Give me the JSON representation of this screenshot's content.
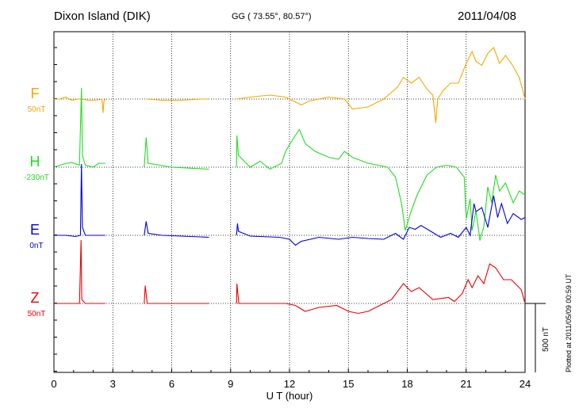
{
  "header": {
    "station": "Dixon Island (DIK)",
    "coords": "GG ( 73.55°,  80.57°)",
    "date": "2011/04/08"
  },
  "footer_note": "Plotted at 2011/05/09 00:59 UT",
  "scale_label": "500 nT",
  "chart_data": {
    "type": "line",
    "xlabel": "U T (hour)",
    "xlim": [
      0,
      24
    ],
    "x_ticks": [
      "0",
      "3",
      "6",
      "9",
      "12",
      "15",
      "18",
      "21",
      "24"
    ],
    "grid": true,
    "scale_bar_nT": 500,
    "series": [
      {
        "name": "F",
        "baseline": "50nT",
        "color": "#f5a800",
        "segments": [
          [
            [
              0,
              0
            ],
            [
              0.3,
              0
            ],
            [
              0.6,
              5
            ],
            [
              0.9,
              -3
            ],
            [
              1.25,
              0
            ],
            [
              1.4,
              0
            ],
            [
              1.7,
              -3
            ],
            [
              2.0,
              -3
            ],
            [
              2.3,
              -2
            ],
            [
              2.45,
              0
            ],
            [
              2.5,
              -35
            ],
            [
              2.55,
              -5
            ],
            [
              2.62,
              0
            ]
          ],
          [
            [
              4.7,
              0
            ],
            [
              5.5,
              -3
            ],
            [
              6.5,
              -3
            ],
            [
              7.5,
              0
            ],
            [
              7.9,
              0
            ]
          ],
          [
            [
              9.3,
              0
            ],
            [
              10,
              5
            ],
            [
              11,
              10
            ],
            [
              11.8,
              5
            ],
            [
              12.2,
              -5
            ],
            [
              12.6,
              -15
            ],
            [
              13,
              -5
            ],
            [
              14,
              5
            ],
            [
              14.8,
              0
            ],
            [
              15.2,
              -25
            ],
            [
              16,
              -20
            ],
            [
              16.8,
              0
            ],
            [
              17.5,
              30
            ],
            [
              17.8,
              55
            ],
            [
              18.2,
              40
            ],
            [
              18.6,
              55
            ],
            [
              19.0,
              25
            ],
            [
              19.3,
              10
            ],
            [
              19.45,
              -60
            ],
            [
              19.55,
              0
            ],
            [
              19.8,
              20
            ],
            [
              20.2,
              40
            ],
            [
              20.6,
              40
            ],
            [
              21.0,
              90
            ],
            [
              21.3,
              120
            ],
            [
              21.5,
              95
            ],
            [
              21.8,
              85
            ],
            [
              22.1,
              115
            ],
            [
              22.4,
              130
            ],
            [
              22.7,
              90
            ],
            [
              23.0,
              110
            ],
            [
              23.3,
              90
            ],
            [
              23.7,
              55
            ],
            [
              24.0,
              0
            ]
          ]
        ]
      },
      {
        "name": "H",
        "baseline": "-230nT",
        "color": "#22dd22",
        "segments": [
          [
            [
              0,
              0
            ],
            [
              0.5,
              8
            ],
            [
              0.9,
              12
            ],
            [
              1.3,
              5
            ],
            [
              1.4,
              200
            ],
            [
              1.45,
              30
            ],
            [
              1.6,
              5
            ],
            [
              2.0,
              0
            ],
            [
              2.3,
              10
            ],
            [
              2.62,
              10
            ]
          ],
          [
            [
              4.6,
              0
            ],
            [
              4.7,
              75
            ],
            [
              4.8,
              10
            ],
            [
              6,
              0
            ],
            [
              7.9,
              -5
            ]
          ],
          [
            [
              9.3,
              0
            ],
            [
              9.32,
              80
            ],
            [
              9.4,
              30
            ],
            [
              10,
              0
            ],
            [
              10.5,
              15
            ],
            [
              11,
              -5
            ],
            [
              11.6,
              10
            ],
            [
              11.8,
              40
            ],
            [
              12.1,
              65
            ],
            [
              12.5,
              95
            ],
            [
              12.8,
              60
            ],
            [
              13.3,
              40
            ],
            [
              14,
              25
            ],
            [
              14.5,
              20
            ],
            [
              14.8,
              40
            ],
            [
              15.2,
              25
            ],
            [
              16,
              10
            ],
            [
              17.0,
              0
            ],
            [
              17.4,
              -25
            ],
            [
              17.7,
              -90
            ],
            [
              17.9,
              -160
            ],
            [
              18.2,
              -110
            ],
            [
              18.5,
              -70
            ],
            [
              19,
              -20
            ],
            [
              19.5,
              0
            ],
            [
              20,
              5
            ],
            [
              20.5,
              0
            ],
            [
              20.9,
              -25
            ],
            [
              21.0,
              -130
            ],
            [
              21.2,
              -80
            ],
            [
              21.3,
              -160
            ],
            [
              21.5,
              -110
            ],
            [
              21.7,
              -185
            ],
            [
              21.9,
              -150
            ],
            [
              22.1,
              -50
            ],
            [
              22.3,
              -90
            ],
            [
              22.5,
              -20
            ],
            [
              22.7,
              -60
            ],
            [
              23,
              -40
            ],
            [
              23.4,
              -90
            ],
            [
              23.7,
              -60
            ],
            [
              24,
              -70
            ]
          ]
        ]
      },
      {
        "name": "E",
        "baseline": "0nT",
        "color": "#0000dd",
        "segments": [
          [
            [
              0,
              0
            ],
            [
              0.6,
              0
            ],
            [
              1.1,
              -3
            ],
            [
              1.35,
              0
            ],
            [
              1.4,
              180
            ],
            [
              1.45,
              20
            ],
            [
              1.6,
              0
            ],
            [
              2.62,
              0
            ]
          ],
          [
            [
              4.6,
              0
            ],
            [
              4.7,
              35
            ],
            [
              4.8,
              5
            ],
            [
              5.5,
              0
            ],
            [
              6.5,
              -2
            ],
            [
              7.9,
              -5
            ]
          ],
          [
            [
              9.3,
              0
            ],
            [
              9.35,
              30
            ],
            [
              9.4,
              10
            ],
            [
              10,
              -2
            ],
            [
              11.5,
              -5
            ],
            [
              12,
              -10
            ],
            [
              12.3,
              -25
            ],
            [
              12.6,
              -15
            ],
            [
              13.5,
              -5
            ],
            [
              14.5,
              -10
            ],
            [
              15.2,
              -5
            ],
            [
              16,
              -8
            ],
            [
              16.8,
              -10
            ],
            [
              17.4,
              5
            ],
            [
              17.8,
              -10
            ],
            [
              18.1,
              20
            ],
            [
              18.4,
              15
            ],
            [
              18.7,
              25
            ],
            [
              19.2,
              10
            ],
            [
              19.7,
              -5
            ],
            [
              20.2,
              5
            ],
            [
              20.6,
              -5
            ],
            [
              21.0,
              20
            ],
            [
              21.2,
              0
            ],
            [
              21.4,
              80
            ],
            [
              21.5,
              60
            ],
            [
              21.8,
              70
            ],
            [
              22.1,
              20
            ],
            [
              22.4,
              100
            ],
            [
              22.6,
              45
            ],
            [
              22.8,
              80
            ],
            [
              23.1,
              30
            ],
            [
              23.4,
              55
            ],
            [
              23.8,
              40
            ],
            [
              24,
              45
            ]
          ]
        ]
      },
      {
        "name": "Z",
        "baseline": "50nT",
        "color": "#ee0000",
        "segments": [
          [
            [
              0,
              0
            ],
            [
              1.3,
              0
            ],
            [
              1.38,
              160
            ],
            [
              1.42,
              10
            ],
            [
              1.6,
              0
            ],
            [
              2.62,
              0
            ]
          ],
          [
            [
              4.6,
              0
            ],
            [
              4.65,
              45
            ],
            [
              4.75,
              0
            ],
            [
              7.9,
              0
            ]
          ],
          [
            [
              9.3,
              0
            ],
            [
              9.32,
              50
            ],
            [
              9.42,
              0
            ],
            [
              10.5,
              0
            ],
            [
              11.8,
              0
            ],
            [
              12.3,
              -5
            ],
            [
              12.8,
              -20
            ],
            [
              13.5,
              -10
            ],
            [
              14.4,
              -5
            ],
            [
              15.0,
              -20
            ],
            [
              15.5,
              -25
            ],
            [
              16,
              -20
            ],
            [
              16.6,
              -5
            ],
            [
              17.2,
              10
            ],
            [
              17.8,
              50
            ],
            [
              18.2,
              30
            ],
            [
              18.6,
              40
            ],
            [
              19.3,
              10
            ],
            [
              20.1,
              15
            ],
            [
              20.4,
              5
            ],
            [
              20.8,
              25
            ],
            [
              21.1,
              60
            ],
            [
              21.3,
              40
            ],
            [
              21.6,
              70
            ],
            [
              21.9,
              50
            ],
            [
              22.2,
              100
            ],
            [
              22.5,
              90
            ],
            [
              22.9,
              60
            ],
            [
              23.3,
              60
            ],
            [
              23.8,
              35
            ],
            [
              24,
              0
            ]
          ]
        ]
      }
    ]
  }
}
